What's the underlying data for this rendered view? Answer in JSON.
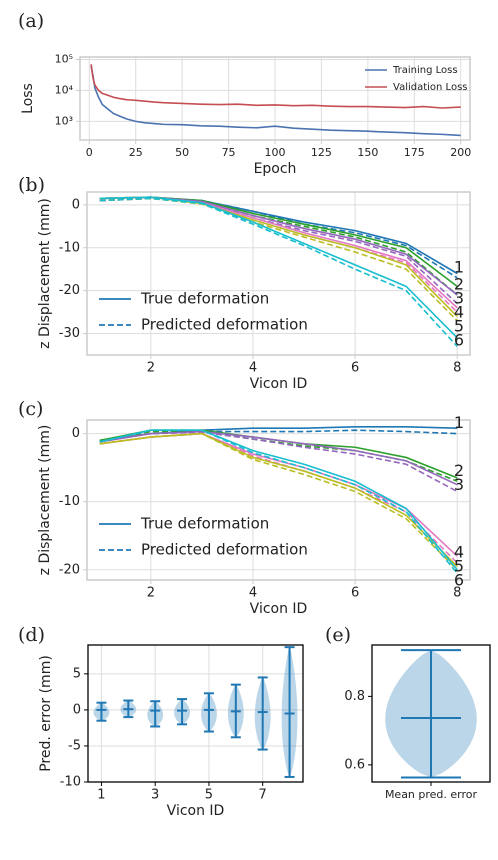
{
  "chart_data": [
    {
      "type": "line",
      "panel_label": "(a)",
      "xlabel": "Epoch",
      "ylabel": "Loss",
      "log_scale": true,
      "grid": true,
      "legend": "upper right",
      "x": [
        1,
        2,
        3,
        5,
        7,
        10,
        13,
        16,
        20,
        25,
        30,
        35,
        40,
        50,
        60,
        70,
        80,
        90,
        100,
        110,
        120,
        130,
        140,
        150,
        160,
        170,
        180,
        190,
        200
      ],
      "series": [
        {
          "name": "Training Loss",
          "color": "#4c72b0",
          "values": [
            60000,
            30000,
            12000,
            6000,
            3500,
            2500,
            1800,
            1500,
            1200,
            1000,
            900,
            850,
            800,
            780,
            720,
            700,
            650,
            620,
            700,
            600,
            560,
            520,
            500,
            480,
            450,
            430,
            400,
            380,
            350
          ]
        },
        {
          "name": "Validation Loss",
          "color": "#c44e52",
          "values": [
            70000,
            25000,
            15000,
            10000,
            8000,
            7000,
            6000,
            5500,
            5000,
            4800,
            4500,
            4200,
            4000,
            3800,
            3600,
            3500,
            3600,
            3300,
            3400,
            3200,
            3300,
            3100,
            3000,
            3000,
            2900,
            2800,
            3000,
            2700,
            2900
          ]
        }
      ],
      "xlim": [
        -5,
        205
      ],
      "xticks": [
        0,
        25,
        50,
        75,
        100,
        125,
        150,
        175,
        200
      ],
      "ylim": [
        250,
        120000
      ],
      "yticks": [
        {
          "value": 1000,
          "label": "10³"
        },
        {
          "value": 10000,
          "label": "10⁴"
        },
        {
          "value": 100000,
          "label": "10⁵"
        }
      ]
    },
    {
      "type": "deformation",
      "panel_label": "(b)",
      "xlabel": "Vicon ID",
      "ylabel": "z Displacement (mm)",
      "grid": true,
      "legend": "lower left",
      "legend_entries": [
        "True deformation",
        "Predicted deformation"
      ],
      "x": [
        1,
        2,
        3,
        4,
        5,
        6,
        7,
        8
      ],
      "series": [
        {
          "name": "1",
          "color": "#1f77b4",
          "values": [
            1.5,
            1.8,
            1,
            -1.5,
            -4,
            -6,
            -9,
            -16
          ],
          "predicted_values": [
            1,
            1.5,
            1,
            -1.5,
            -4.5,
            -6.5,
            -9.5,
            -17
          ]
        },
        {
          "name": "2",
          "color": "#2ca02c",
          "values": [
            1.5,
            1.8,
            1,
            -2,
            -4.5,
            -7,
            -10,
            -19
          ],
          "predicted_values": [
            1,
            1.5,
            0.8,
            -2.5,
            -5,
            -7.5,
            -11,
            -21
          ]
        },
        {
          "name": "3",
          "color": "#9467bd",
          "values": [
            1.5,
            1.8,
            0.8,
            -2.5,
            -5.5,
            -8,
            -11.5,
            -21
          ],
          "predicted_values": [
            1,
            1.5,
            0.6,
            -3,
            -6,
            -8.5,
            -12,
            -23
          ]
        },
        {
          "name": "4",
          "color": "#e377c2",
          "values": [
            1.5,
            1.8,
            0.5,
            -3,
            -6.5,
            -9.5,
            -13,
            -24
          ],
          "predicted_values": [
            1,
            1.5,
            0.4,
            -3.5,
            -7,
            -10,
            -13.5,
            -25
          ]
        },
        {
          "name": "5",
          "color": "#bcbd22",
          "values": [
            1.5,
            1.8,
            0.3,
            -3.5,
            -7,
            -10,
            -14,
            -26
          ],
          "predicted_values": [
            1,
            1.5,
            0.2,
            -4,
            -7.5,
            -11,
            -15,
            -27
          ]
        },
        {
          "name": "6",
          "color": "#17becf",
          "values": [
            1.5,
            1.8,
            0.5,
            -4,
            -9,
            -14,
            -19,
            -31
          ],
          "predicted_values": [
            1,
            1.5,
            0.3,
            -4.5,
            -9.5,
            -15,
            -20,
            -33
          ]
        }
      ],
      "xlim": [
        0.75,
        8.25
      ],
      "xticks": [
        2,
        4,
        6,
        8
      ],
      "ylim": [
        -35,
        3
      ],
      "yticks": [
        0,
        -10,
        -20,
        -30
      ]
    },
    {
      "type": "deformation",
      "panel_label": "(c)",
      "xlabel": "Vicon ID",
      "ylabel": "z Displacement (mm)",
      "grid": true,
      "legend": "lower left",
      "legend_entries": [
        "True deformation",
        "Predicted deformation"
      ],
      "x": [
        1,
        2,
        3,
        4,
        5,
        6,
        7,
        8
      ],
      "series": [
        {
          "name": "1",
          "color": "#1f77b4",
          "values": [
            -1,
            0,
            0.5,
            0.8,
            0.8,
            1,
            1,
            0.8
          ],
          "predicted_values": [
            -1,
            0,
            0.3,
            0.3,
            0.3,
            0.5,
            0.3,
            0
          ]
        },
        {
          "name": "2",
          "color": "#2ca02c",
          "values": [
            -1,
            0.5,
            0.5,
            -0.5,
            -1.5,
            -2,
            -3.5,
            -6.5
          ],
          "predicted_values": [
            -1,
            0.3,
            0.3,
            -0.8,
            -1.8,
            -2.5,
            -4,
            -7
          ]
        },
        {
          "name": "3",
          "color": "#9467bd",
          "values": [
            -1.2,
            0,
            0.3,
            -0.5,
            -1.5,
            -2.5,
            -4,
            -7.5
          ],
          "predicted_values": [
            -1.2,
            0,
            0.2,
            -0.8,
            -2,
            -3,
            -4.5,
            -8.5
          ]
        },
        {
          "name": "4",
          "color": "#e377c2",
          "values": [
            -1.5,
            -0.5,
            0,
            -3,
            -5,
            -7.5,
            -11,
            -18
          ],
          "predicted_values": [
            -1.5,
            -0.5,
            0,
            -3.3,
            -5.5,
            -8,
            -11.5,
            -19
          ]
        },
        {
          "name": "5",
          "color": "#bcbd22",
          "values": [
            -1.5,
            -0.5,
            0,
            -3.5,
            -5.5,
            -8,
            -12,
            -19.5
          ],
          "predicted_values": [
            -1.5,
            -0.5,
            0,
            -3.8,
            -6,
            -8.5,
            -12.5,
            -20
          ]
        },
        {
          "name": "6",
          "color": "#17becf",
          "values": [
            -1.2,
            0.5,
            0.5,
            -2.5,
            -4.5,
            -7,
            -11,
            -20
          ],
          "predicted_values": [
            -1.2,
            0.5,
            0.5,
            -2.8,
            -5,
            -7.5,
            -11.5,
            -20.5
          ]
        }
      ],
      "xlim": [
        0.75,
        8.25
      ],
      "xticks": [
        2,
        4,
        6,
        8
      ],
      "ylim": [
        -21.5,
        2
      ],
      "yticks": [
        0,
        -10,
        -20
      ]
    },
    {
      "type": "violin",
      "panel_label": "(d)",
      "xlabel": "Vicon ID",
      "ylabel": "Pred. error (mm)",
      "grid": true,
      "color": "#1f77b4",
      "x": [
        1,
        2,
        3,
        4,
        5,
        6,
        7,
        8
      ],
      "min": [
        -1.5,
        -1,
        -2.3,
        -2,
        -3,
        -3.8,
        -5.5,
        -9.3
      ],
      "max": [
        1,
        1.3,
        1.2,
        1.5,
        2.3,
        3.5,
        4.5,
        8.7
      ],
      "mean": [
        0,
        0.1,
        -0.1,
        -0.1,
        0,
        -0.2,
        -0.3,
        -0.5
      ],
      "xlim": [
        0.5,
        8.5
      ],
      "xticks": [
        1,
        3,
        5,
        7
      ],
      "ylim": [
        -10,
        9
      ],
      "yticks": [
        -10,
        -5,
        0,
        5
      ]
    },
    {
      "type": "violin",
      "panel_label": "(e)",
      "grid": false,
      "color": "#1f77b4",
      "categories": [
        "Mean pred. error"
      ],
      "min": [
        0.563
      ],
      "max": [
        0.935
      ],
      "mean": [
        0.737
      ],
      "ylim": [
        0.55,
        0.95
      ],
      "yticks": [
        0.6,
        0.8
      ]
    }
  ]
}
